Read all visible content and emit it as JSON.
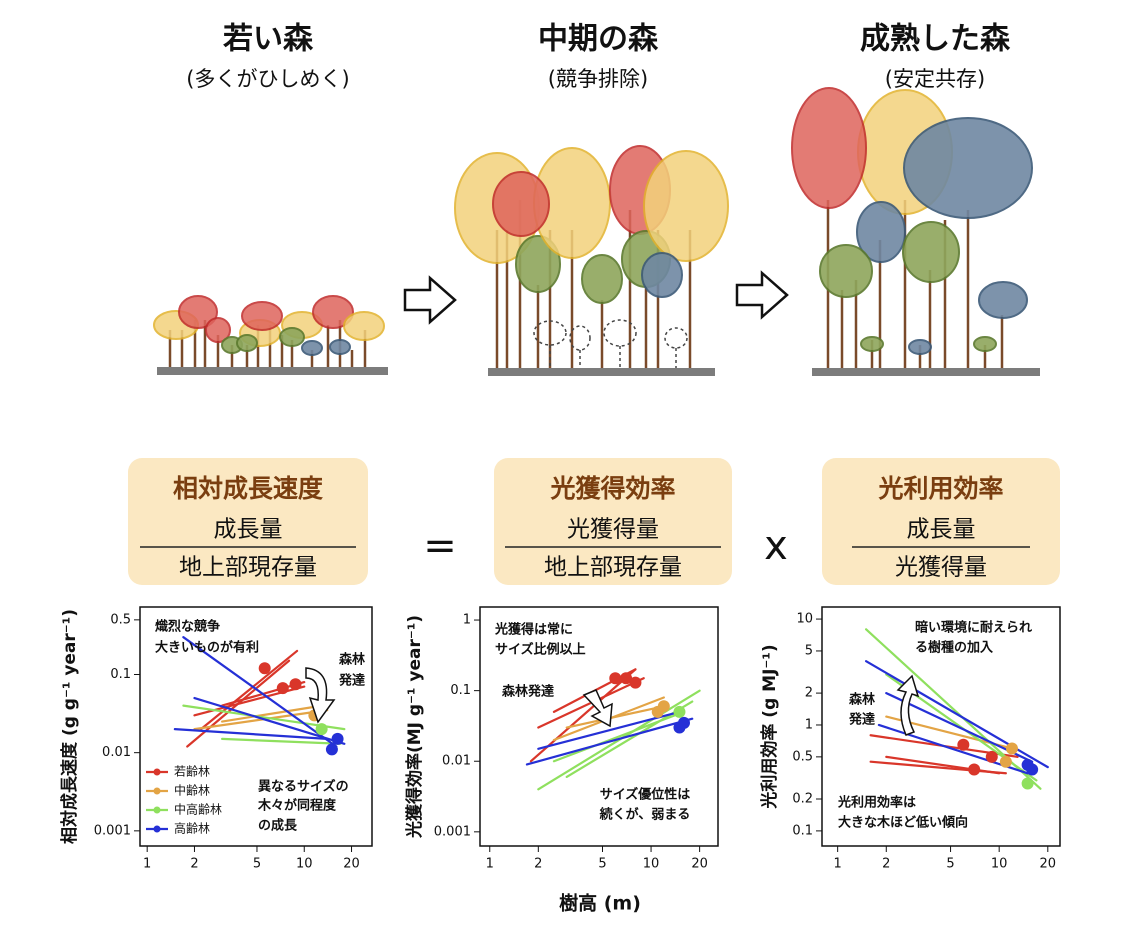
{
  "stages": [
    {
      "title": "若い森",
      "subtitle": "(多くがひしめく)"
    },
    {
      "title": "中期の森",
      "subtitle": "(競争排除)"
    },
    {
      "title": "成熟した森",
      "subtitle": "(安定共存)"
    }
  ],
  "equation": {
    "terms": [
      {
        "title": "相対成長速度",
        "numerator": "成長量",
        "denominator": "地上部現存量"
      },
      {
        "title": "光獲得効率",
        "numerator": "光獲得量",
        "denominator": "地上部現存量"
      },
      {
        "title": "光利用効率",
        "numerator": "成長量",
        "denominator": "光獲得量"
      }
    ],
    "operators": [
      "=",
      "x"
    ]
  },
  "x_label": "樹高 (m)",
  "legend": [
    {
      "name": "若齢林",
      "color": "#d9362a"
    },
    {
      "name": "中齢林",
      "color": "#e3a445"
    },
    {
      "name": "中高齢林",
      "color": "#8fe05e"
    },
    {
      "name": "高齢林",
      "color": "#2530d6"
    }
  ],
  "plots": [
    {
      "type": "scatter",
      "log_x": true,
      "log_y": true,
      "y_label": "相対成長速度 (g g⁻¹ year⁻¹)",
      "xlim": [
        0.9,
        27
      ],
      "ylim": [
        0.00064,
        0.73
      ],
      "xticks": [
        1,
        2,
        5,
        10,
        20
      ],
      "yticks": [
        0.5,
        0.1,
        0.01,
        0.001
      ],
      "annotations": [
        "熾烈な競争",
        "大きいものが有利",
        "森林",
        "発達",
        "異なるサイズの",
        "木々が同程度",
        "の成長"
      ],
      "lines": [
        {
          "color": "#d9362a",
          "x": [
            1.8,
            8
          ],
          "y": [
            0.012,
            0.15
          ]
        },
        {
          "color": "#d9362a",
          "x": [
            2.2,
            9
          ],
          "y": [
            0.02,
            0.2
          ]
        },
        {
          "color": "#d9362a",
          "x": [
            2,
            10
          ],
          "y": [
            0.03,
            0.07
          ]
        },
        {
          "color": "#d9362a",
          "x": [
            3,
            10
          ],
          "y": [
            0.04,
            0.08
          ]
        },
        {
          "color": "#e3a445",
          "x": [
            2,
            14
          ],
          "y": [
            0.02,
            0.035
          ]
        },
        {
          "color": "#e3a445",
          "x": [
            3,
            13
          ],
          "y": [
            0.025,
            0.04
          ]
        },
        {
          "color": "#8fe05e",
          "x": [
            1.7,
            18
          ],
          "y": [
            0.04,
            0.02
          ]
        },
        {
          "color": "#8fe05e",
          "x": [
            3,
            17
          ],
          "y": [
            0.015,
            0.013
          ]
        },
        {
          "color": "#2530d6",
          "x": [
            1.7,
            16
          ],
          "y": [
            0.3,
            0.012
          ]
        },
        {
          "color": "#2530d6",
          "x": [
            2,
            18
          ],
          "y": [
            0.05,
            0.013
          ]
        },
        {
          "color": "#2530d6",
          "x": [
            1.5,
            14
          ],
          "y": [
            0.02,
            0.015
          ]
        }
      ],
      "points": [
        {
          "color": "#d9362a",
          "x": 5.6,
          "y": 0.12
        },
        {
          "color": "#d9362a",
          "x": 7.3,
          "y": 0.067
        },
        {
          "color": "#d9362a",
          "x": 8.8,
          "y": 0.075
        },
        {
          "color": "#e3a445",
          "x": 11.6,
          "y": 0.03
        },
        {
          "color": "#8fe05e",
          "x": 12.9,
          "y": 0.02
        },
        {
          "color": "#2530d6",
          "x": 15,
          "y": 0.011
        },
        {
          "color": "#2530d6",
          "x": 16.3,
          "y": 0.015
        }
      ]
    },
    {
      "type": "scatter",
      "log_x": true,
      "log_y": true,
      "y_label": "光獲得効率(MJ g⁻¹ year⁻¹)",
      "xlim": [
        0.87,
        26
      ],
      "ylim": [
        0.00063,
        1.53
      ],
      "xticks": [
        1,
        2,
        5,
        10,
        20
      ],
      "yticks": [
        1,
        0.1,
        0.01,
        0.001
      ],
      "annotations": [
        "光獲得は常に",
        "サイズ比例以上",
        "森林発達",
        "サイズ優位性は",
        "続くが、弱まる"
      ],
      "lines": [
        {
          "color": "#d9362a",
          "x": [
            1.8,
            8
          ],
          "y": [
            0.01,
            0.2
          ]
        },
        {
          "color": "#d9362a",
          "x": [
            2,
            9
          ],
          "y": [
            0.03,
            0.15
          ]
        },
        {
          "color": "#d9362a",
          "x": [
            2.5,
            8
          ],
          "y": [
            0.05,
            0.2
          ]
        },
        {
          "color": "#e3a445",
          "x": [
            2.5,
            12
          ],
          "y": [
            0.02,
            0.08
          ]
        },
        {
          "color": "#e3a445",
          "x": [
            3,
            12
          ],
          "y": [
            0.03,
            0.06
          ]
        },
        {
          "color": "#8fe05e",
          "x": [
            2,
            20
          ],
          "y": [
            0.004,
            0.1
          ]
        },
        {
          "color": "#8fe05e",
          "x": [
            2.5,
            16
          ],
          "y": [
            0.01,
            0.05
          ]
        },
        {
          "color": "#8fe05e",
          "x": [
            3,
            18
          ],
          "y": [
            0.006,
            0.07
          ]
        },
        {
          "color": "#2530d6",
          "x": [
            1.7,
            18
          ],
          "y": [
            0.009,
            0.04
          ]
        },
        {
          "color": "#2530d6",
          "x": [
            2,
            15
          ],
          "y": [
            0.015,
            0.05
          ]
        }
      ],
      "points": [
        {
          "color": "#d9362a",
          "x": 6,
          "y": 0.15
        },
        {
          "color": "#d9362a",
          "x": 7,
          "y": 0.15
        },
        {
          "color": "#d9362a",
          "x": 8,
          "y": 0.13
        },
        {
          "color": "#e3a445",
          "x": 12,
          "y": 0.06
        },
        {
          "color": "#e3a445",
          "x": 11,
          "y": 0.05
        },
        {
          "color": "#8fe05e",
          "x": 15,
          "y": 0.05
        },
        {
          "color": "#2530d6",
          "x": 15,
          "y": 0.03
        },
        {
          "color": "#2530d6",
          "x": 16,
          "y": 0.035
        }
      ]
    },
    {
      "type": "scatter",
      "log_x": true,
      "log_y": true,
      "y_label": "光利用効率 (g MJ⁻¹)",
      "xlim": [
        0.8,
        23.8
      ],
      "ylim": [
        0.072,
        13
      ],
      "xticks": [
        1,
        2,
        5,
        10,
        20
      ],
      "yticks": [
        10,
        5,
        2,
        1,
        0.5,
        0.2,
        0.1
      ],
      "annotations": [
        "暗い環境に耐えられ",
        "る樹種の加入",
        "森林",
        "発達",
        "光利用効率は",
        "大きな木ほど低い傾向"
      ],
      "lines": [
        {
          "color": "#d9362a",
          "x": [
            1.6,
            13
          ],
          "y": [
            0.8,
            0.5
          ]
        },
        {
          "color": "#d9362a",
          "x": [
            2,
            10
          ],
          "y": [
            0.5,
            0.35
          ]
        },
        {
          "color": "#d9362a",
          "x": [
            1.6,
            11
          ],
          "y": [
            0.45,
            0.35
          ]
        },
        {
          "color": "#e3a445",
          "x": [
            2,
            12
          ],
          "y": [
            1.2,
            0.6
          ]
        },
        {
          "color": "#8fe05e",
          "x": [
            1.5,
            18
          ],
          "y": [
            8,
            0.25
          ]
        },
        {
          "color": "#8fe05e",
          "x": [
            2,
            17
          ],
          "y": [
            3,
            0.3
          ]
        },
        {
          "color": "#2530d6",
          "x": [
            1.5,
            20
          ],
          "y": [
            4,
            0.4
          ]
        },
        {
          "color": "#2530d6",
          "x": [
            2,
            16
          ],
          "y": [
            2,
            0.45
          ]
        },
        {
          "color": "#2530d6",
          "x": [
            1.8,
            15
          ],
          "y": [
            1,
            0.35
          ]
        }
      ],
      "points": [
        {
          "color": "#d9362a",
          "x": 6,
          "y": 0.65
        },
        {
          "color": "#d9362a",
          "x": 9,
          "y": 0.5
        },
        {
          "color": "#d9362a",
          "x": 7,
          "y": 0.38
        },
        {
          "color": "#e3a445",
          "x": 12,
          "y": 0.6
        },
        {
          "color": "#e3a445",
          "x": 11,
          "y": 0.45
        },
        {
          "color": "#8fe05e",
          "x": 15,
          "y": 0.28
        },
        {
          "color": "#2530d6",
          "x": 15,
          "y": 0.42
        },
        {
          "color": "#2530d6",
          "x": 16,
          "y": 0.38
        }
      ]
    }
  ]
}
